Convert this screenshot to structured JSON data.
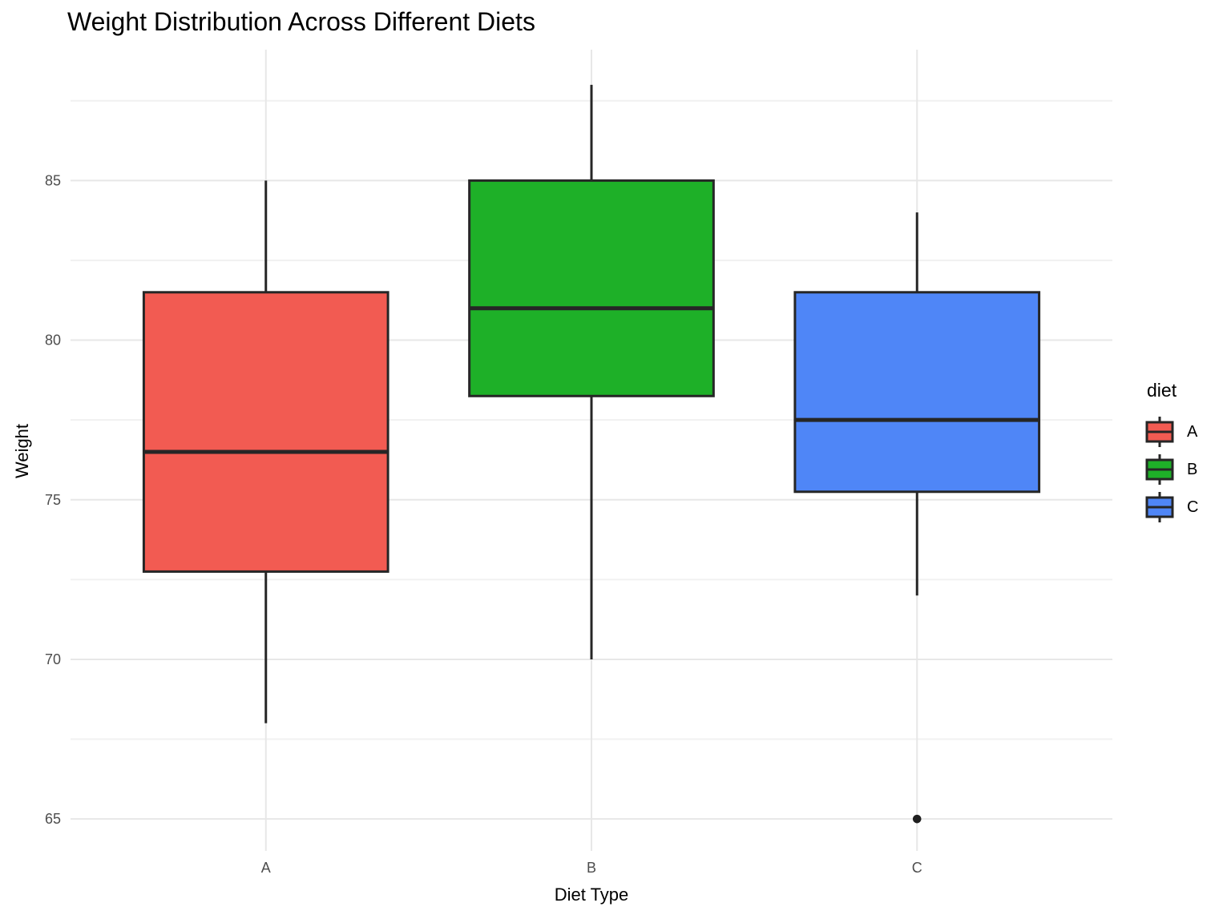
{
  "colors": {
    "box_edge": "#262626",
    "median": "#262626",
    "whisker": "#262626",
    "outlier": "#1f1f1f",
    "grid_major": "#E7E7E7",
    "grid_minor": "#F1F1F1",
    "tick_label": "#4D4D4D",
    "fill_A": "#F25B52",
    "fill_B": "#1EB028",
    "fill_C": "#4F86F7"
  },
  "chart_data": {
    "type": "boxplot",
    "title": "Weight Distribution Across Different Diets",
    "xlabel": "Diet Type",
    "ylabel": "Weight",
    "categories": [
      "A",
      "B",
      "C"
    ],
    "ylim": [
      64,
      89.1
    ],
    "yticks": [
      65,
      70,
      75,
      80,
      85
    ],
    "yticks_minor": [
      67.5,
      72.5,
      77.5,
      82.5,
      87.5
    ],
    "grid": true,
    "legend": {
      "title": "diet",
      "position": "right",
      "entries": [
        {
          "label": "A",
          "fill": "#F25B52"
        },
        {
          "label": "B",
          "fill": "#1EB028"
        },
        {
          "label": "C",
          "fill": "#4F86F7"
        }
      ]
    },
    "series": [
      {
        "name": "A",
        "fill": "#F25B52",
        "whisker_low": 68,
        "q1": 72.75,
        "median": 76.5,
        "q3": 81.5,
        "whisker_high": 85,
        "outliers": []
      },
      {
        "name": "B",
        "fill": "#1EB028",
        "whisker_low": 70,
        "q1": 78.25,
        "median": 81,
        "q3": 85,
        "whisker_high": 88,
        "outliers": []
      },
      {
        "name": "C",
        "fill": "#4F86F7",
        "whisker_low": 72,
        "q1": 75.25,
        "median": 77.5,
        "q3": 81.5,
        "whisker_high": 84,
        "outliers": [
          65
        ]
      }
    ]
  }
}
